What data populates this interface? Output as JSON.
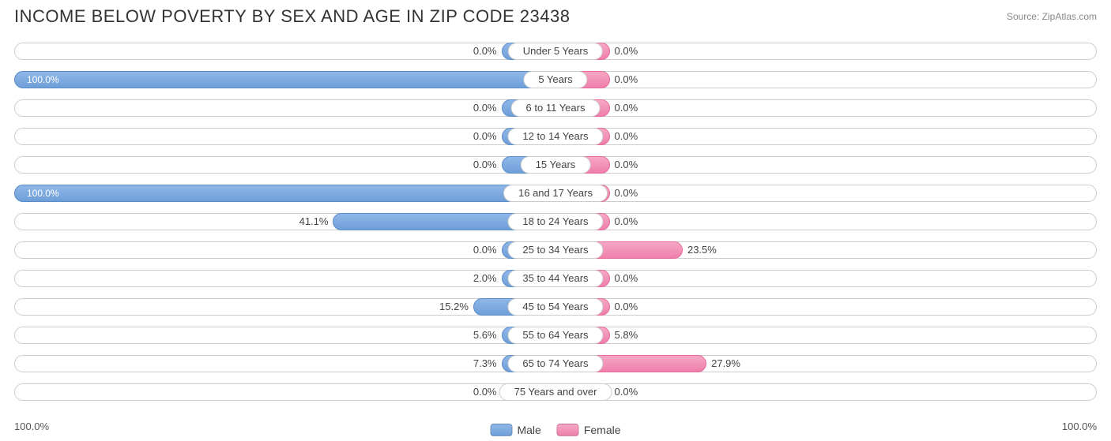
{
  "title": "INCOME BELOW POVERTY BY SEX AND AGE IN ZIP CODE 23438",
  "source": "Source: ZipAtlas.com",
  "axis": {
    "left": "100.0%",
    "right": "100.0%"
  },
  "legend": {
    "male": "Male",
    "female": "Female"
  },
  "chart": {
    "type": "diverging-bar",
    "min_bar_pct": 10.0,
    "male_color": "#6f9fd8",
    "female_color": "#ee7eab",
    "track_border": "#cccccc",
    "background": "#ffffff",
    "title_fontsize": 22,
    "label_fontsize": 13,
    "rows": [
      {
        "label": "Under 5 Years",
        "male": 0.0,
        "female": 0.0
      },
      {
        "label": "5 Years",
        "male": 100.0,
        "female": 0.0
      },
      {
        "label": "6 to 11 Years",
        "male": 0.0,
        "female": 0.0
      },
      {
        "label": "12 to 14 Years",
        "male": 0.0,
        "female": 0.0
      },
      {
        "label": "15 Years",
        "male": 0.0,
        "female": 0.0
      },
      {
        "label": "16 and 17 Years",
        "male": 100.0,
        "female": 0.0
      },
      {
        "label": "18 to 24 Years",
        "male": 41.1,
        "female": 0.0
      },
      {
        "label": "25 to 34 Years",
        "male": 0.0,
        "female": 23.5
      },
      {
        "label": "35 to 44 Years",
        "male": 2.0,
        "female": 0.0
      },
      {
        "label": "45 to 54 Years",
        "male": 15.2,
        "female": 0.0
      },
      {
        "label": "55 to 64 Years",
        "male": 5.6,
        "female": 5.8
      },
      {
        "label": "65 to 74 Years",
        "male": 7.3,
        "female": 27.9
      },
      {
        "label": "75 Years and over",
        "male": 0.0,
        "female": 0.0
      }
    ]
  }
}
